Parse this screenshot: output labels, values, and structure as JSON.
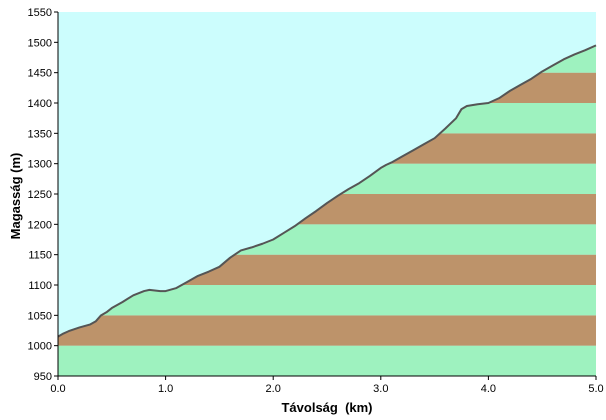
{
  "chart_data": {
    "type": "area",
    "xlabel": "Távolság  (km)",
    "ylabel": "Magasság (m)",
    "xlim": [
      0,
      5
    ],
    "ylim": [
      950,
      1550
    ],
    "xticks": [
      "0.0",
      "1.0",
      "2.0",
      "3.0",
      "4.0",
      "5.0"
    ],
    "yticks": [
      "950",
      "1000",
      "1050",
      "1100",
      "1150",
      "1200",
      "1250",
      "1300",
      "1350",
      "1400",
      "1450",
      "1500",
      "1550"
    ],
    "band_height": 50,
    "grid": false,
    "legend": "none",
    "colors": {
      "sky": "#ccfdfd",
      "band_brown": "#bd936a",
      "band_green": "#9ef2bf",
      "profile_line": "#555555",
      "axis": "#000000"
    },
    "series": [
      {
        "x": [
          0,
          0.05,
          0.1,
          0.2,
          0.3,
          0.35,
          0.4,
          0.45,
          0.5,
          0.6,
          0.7,
          0.8,
          0.85,
          0.9,
          0.95,
          1.0,
          1.1,
          1.2,
          1.3,
          1.4,
          1.5,
          1.6,
          1.7,
          1.8,
          1.9,
          2.0,
          2.1,
          2.2,
          2.3,
          2.4,
          2.5,
          2.6,
          2.7,
          2.8,
          2.9,
          3.0,
          3.05,
          3.1,
          3.2,
          3.3,
          3.4,
          3.5,
          3.6,
          3.7,
          3.75,
          3.8,
          3.9,
          4.0,
          4.1,
          4.2,
          4.3,
          4.4,
          4.5,
          4.6,
          4.7,
          4.8,
          4.9,
          5.0
        ],
        "values": [
          1015,
          1020,
          1024,
          1030,
          1035,
          1040,
          1050,
          1055,
          1062,
          1072,
          1083,
          1090,
          1092,
          1091,
          1090,
          1090,
          1095,
          1105,
          1115,
          1122,
          1130,
          1145,
          1157,
          1162,
          1168,
          1175,
          1186,
          1197,
          1210,
          1222,
          1235,
          1247,
          1258,
          1268,
          1280,
          1293,
          1298,
          1302,
          1312,
          1322,
          1332,
          1342,
          1358,
          1375,
          1390,
          1395,
          1398,
          1400,
          1408,
          1420,
          1430,
          1440,
          1452,
          1462,
          1472,
          1480,
          1487,
          1495
        ]
      }
    ]
  }
}
